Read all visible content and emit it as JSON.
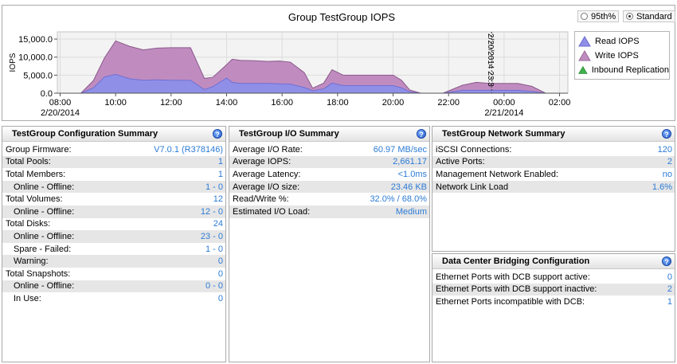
{
  "chart": {
    "title": "Group TestGroup IOPS",
    "radio_options": [
      {
        "label": "95th%",
        "checked": false
      },
      {
        "label": "Standard",
        "checked": true
      }
    ],
    "legend": [
      {
        "label": "Read IOPS",
        "color": "#8f8fe8"
      },
      {
        "label": "Write IOPS",
        "color": "#c08cc0"
      },
      {
        "label": "Inbound Replication",
        "color": "#3fb04a"
      }
    ],
    "ylabel": "IOPS",
    "marker_label": "2/20/2014 23:3"
  },
  "chart_data": {
    "type": "area",
    "title": "Group TestGroup IOPS",
    "ylabel": "IOPS",
    "ylim": [
      0,
      17000
    ],
    "y_ticks": [
      "15,000.0",
      "10,000.0",
      "5,000.0",
      "0.0"
    ],
    "y_tick_values": [
      15000,
      10000,
      5000,
      0
    ],
    "x_ticks": [
      {
        "line1": "08:00",
        "line2": "2/20/2014",
        "hour": 8
      },
      {
        "line1": "10:00",
        "line2": "",
        "hour": 10
      },
      {
        "line1": "12:00",
        "line2": "",
        "hour": 12
      },
      {
        "line1": "14:00",
        "line2": "",
        "hour": 14
      },
      {
        "line1": "16:00",
        "line2": "",
        "hour": 16
      },
      {
        "line1": "18:00",
        "line2": "",
        "hour": 18
      },
      {
        "line1": "20:00",
        "line2": "",
        "hour": 20
      },
      {
        "line1": "22:00",
        "line2": "",
        "hour": 22
      },
      {
        "line1": "00:00",
        "line2": "2/21/2014",
        "hour": 24
      },
      {
        "line1": "02:00",
        "line2": "",
        "hour": 26
      }
    ],
    "xlim": [
      7.9,
      26.3
    ],
    "marker_hour": 23.55,
    "x": [
      8.75,
      9.2,
      9.6,
      10.0,
      10.5,
      11.0,
      11.5,
      12.0,
      12.3,
      12.7,
      13.2,
      13.5,
      14.0,
      14.2,
      14.5,
      15.0,
      15.5,
      15.9,
      16.3,
      16.8,
      17.1,
      17.5,
      17.8,
      18.2,
      19.0,
      19.5,
      20.0,
      20.3,
      20.6,
      21.0,
      21.5,
      21.8,
      22.5,
      23.0,
      23.5,
      24.0,
      24.5,
      25.0,
      25.5
    ],
    "series": [
      {
        "name": "Read IOPS",
        "values": [
          0,
          1500,
          4500,
          5200,
          4000,
          3600,
          3700,
          3600,
          3600,
          3600,
          1000,
          1800,
          4200,
          3000,
          2700,
          2700,
          2700,
          2600,
          2500,
          1600,
          700,
          1200,
          2800,
          2100,
          2100,
          2100,
          2100,
          1500,
          400,
          0,
          0,
          0,
          800,
          800,
          800,
          800,
          800,
          500,
          0
        ]
      },
      {
        "name": "Write IOPS",
        "values": [
          0,
          2000,
          5300,
          9300,
          9000,
          8400,
          8800,
          9000,
          9000,
          9000,
          3100,
          2600,
          3700,
          6400,
          6400,
          6300,
          6100,
          6300,
          6100,
          4100,
          700,
          1600,
          3700,
          2900,
          2900,
          2900,
          2900,
          2100,
          500,
          0,
          0,
          0,
          1400,
          2200,
          1900,
          1900,
          1900,
          1400,
          0
        ]
      },
      {
        "name": "Inbound Replication",
        "values": [
          0,
          0,
          0,
          0,
          0,
          0,
          0,
          0,
          0,
          0,
          0,
          0,
          0,
          0,
          0,
          0,
          0,
          0,
          0,
          0,
          0,
          0,
          0,
          0,
          0,
          0,
          0,
          0,
          0,
          0,
          0,
          0,
          0,
          0,
          0,
          0,
          0,
          0,
          0
        ]
      }
    ],
    "stacked": true,
    "grid": true,
    "legend_position": "right"
  },
  "config": {
    "title": "TestGroup Configuration Summary",
    "rows": [
      {
        "label": "Group Firmware:",
        "value": "V7.0.1 (R378146)",
        "indent": false
      },
      {
        "label": "Total Pools:",
        "value": "1",
        "indent": false
      },
      {
        "label": "Total Members:",
        "value": "1",
        "indent": false
      },
      {
        "label": "Online - Offline:",
        "value": "1 - 0",
        "indent": true
      },
      {
        "label": "Total Volumes:",
        "value": "12",
        "indent": false
      },
      {
        "label": "Online - Offline:",
        "value": "12 - 0",
        "indent": true
      },
      {
        "label": "Total Disks:",
        "value": "24",
        "indent": false
      },
      {
        "label": "Online - Offline:",
        "value": "23 - 0",
        "indent": true
      },
      {
        "label": "Spare - Failed:",
        "value": "1 - 0",
        "indent": true
      },
      {
        "label": "Warning:",
        "value": "0",
        "indent": true
      },
      {
        "label": "Total Snapshots:",
        "value": "0",
        "indent": false
      },
      {
        "label": "Online - Offline:",
        "value": "0 - 0",
        "indent": true
      },
      {
        "label": "In Use:",
        "value": "0",
        "indent": true
      }
    ]
  },
  "io": {
    "title": "TestGroup I/O Summary",
    "rows": [
      {
        "label": "Average I/O Rate:",
        "value": "60.97 MB/sec"
      },
      {
        "label": "Average IOPS:",
        "value": "2,661.17"
      },
      {
        "label": "Average Latency:",
        "value": "<1.0ms"
      },
      {
        "label": "Average I/O size:",
        "value": "23.46 KB"
      },
      {
        "label": "Read/Write %:",
        "value": "32.0% / 68.0%"
      },
      {
        "label": "Estimated I/O Load:",
        "value": "Medium"
      }
    ]
  },
  "network": {
    "title": "TestGroup Network Summary",
    "rows": [
      {
        "label": "iSCSI Connections:",
        "value": "120"
      },
      {
        "label": "Active Ports:",
        "value": "2"
      },
      {
        "label": "Management Network Enabled:",
        "value": "no"
      },
      {
        "label": "Network Link Load",
        "value": "1.6%"
      }
    ]
  },
  "dcb": {
    "title": "Data Center Bridging Configuration",
    "rows": [
      {
        "label": "Ethernet Ports with DCB support active:",
        "value": "0"
      },
      {
        "label": "Ethernet Ports with DCB support inactive:",
        "value": "2"
      },
      {
        "label": "Ethernet Ports incompatible with DCB:",
        "value": "1"
      }
    ]
  },
  "help_glyph": "?"
}
